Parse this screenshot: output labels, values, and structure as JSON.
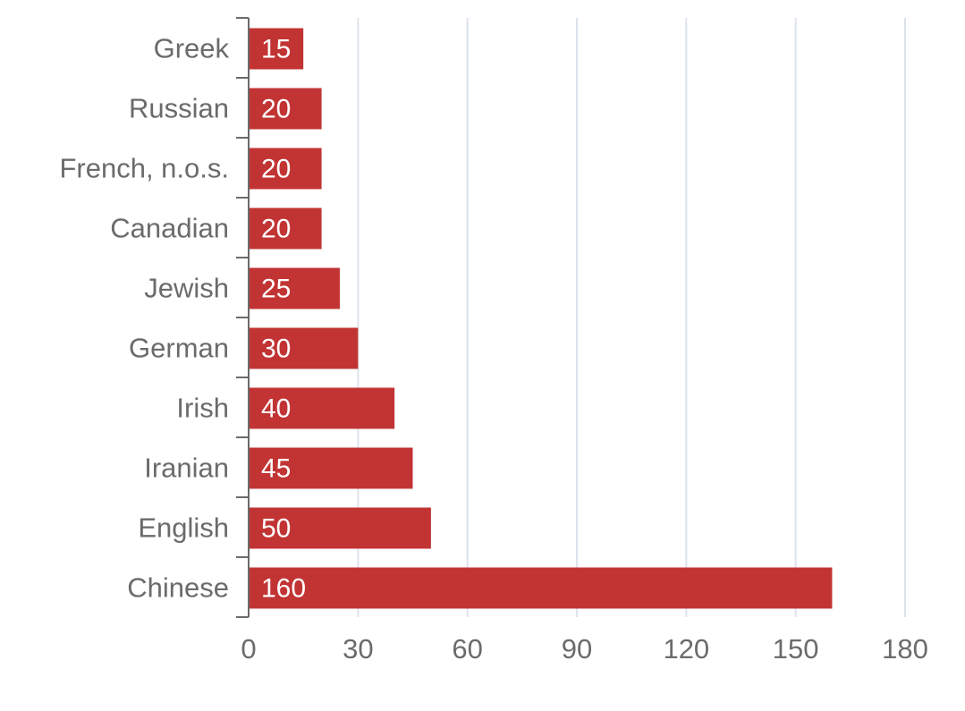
{
  "chart_data": {
    "type": "bar",
    "orientation": "horizontal",
    "categories": [
      "Greek",
      "Russian",
      "French, n.o.s.",
      "Canadian",
      "Jewish",
      "German",
      "Irish",
      "Iranian",
      "English",
      "Chinese"
    ],
    "values": [
      15,
      20,
      20,
      20,
      25,
      30,
      40,
      45,
      50,
      160
    ],
    "title": "",
    "xlabel": "",
    "ylabel": "",
    "xlim": [
      0,
      180
    ],
    "xticks": [
      0,
      30,
      60,
      90,
      120,
      150,
      180
    ],
    "grid": "vertical",
    "legend": "none",
    "data_labels": "inside-left",
    "colors": {
      "bar": "#c23434",
      "grid": "#dde3ea",
      "axis": "#6b6b6b",
      "text": "#6b6b6b",
      "value_text": "#ffffff"
    }
  }
}
